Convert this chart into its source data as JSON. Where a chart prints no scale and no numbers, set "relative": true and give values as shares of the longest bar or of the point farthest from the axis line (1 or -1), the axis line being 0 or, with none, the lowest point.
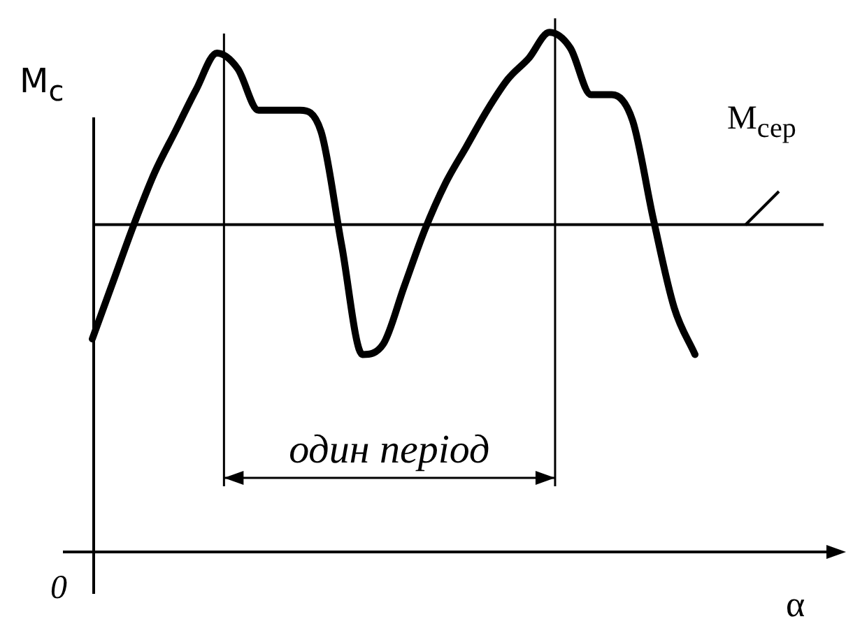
{
  "chart_data": {
    "type": "line",
    "relative": true,
    "ylabel": "M$_{c}$",
    "xlabel": "α",
    "color": "#000000",
    "marker": "none",
    "grid": false,
    "legend": false,
    "categories": [
      null,
      null,
      null,
      null,
      null,
      null,
      null,
      null,
      null,
      null,
      null,
      null,
      null,
      null,
      null,
      null,
      null,
      null,
      null,
      null,
      null,
      null,
      null,
      null,
      null,
      null,
      null,
      null,
      null,
      null
    ],
    "values": [
      0.41,
      0.52,
      0.63,
      0.73,
      0.81,
      0.89,
      0.96,
      0.93,
      0.85,
      0.85,
      0.85,
      0.81,
      0.59,
      0.38,
      0.4,
      0.51,
      0.62,
      0.71,
      0.78,
      0.85,
      0.91,
      0.95,
      1,
      0.97,
      0.88,
      0.88,
      0.83,
      0.64,
      0.47,
      0.38
    ],
    "ref_lines": [
      {
        "axis": "y",
        "value": 0.63,
        "label": "M$_{сер}$"
      }
    ],
    "annotations": [
      "один період",
      "0"
    ]
  }
}
